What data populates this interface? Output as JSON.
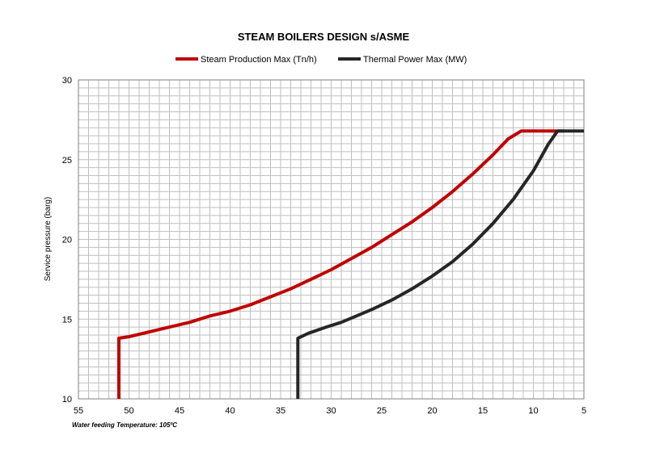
{
  "chart_data": {
    "type": "line",
    "title": "STEAM BOILERS DESIGN s/ASME",
    "xlabel": "",
    "ylabel": "Service pressure  (barg)",
    "footnote": "Water feeding Temperature: 105ºC",
    "xlim": [
      55,
      5
    ],
    "x_reversed": true,
    "ylim": [
      10,
      30
    ],
    "xticks": [
      55,
      50,
      45,
      40,
      35,
      30,
      25,
      20,
      15,
      10,
      5
    ],
    "yticks": [
      10,
      15,
      20,
      25,
      30
    ],
    "grid": true,
    "legend_position": "top-center",
    "series": [
      {
        "name": "Steam Production Max (Tn/h)",
        "color": "#c00000",
        "points": [
          [
            51,
            10
          ],
          [
            51,
            13.8
          ],
          [
            50,
            13.9
          ],
          [
            48,
            14.2
          ],
          [
            46,
            14.5
          ],
          [
            44,
            14.8
          ],
          [
            42,
            15.2
          ],
          [
            40,
            15.5
          ],
          [
            38,
            15.9
          ],
          [
            36,
            16.4
          ],
          [
            34,
            16.9
          ],
          [
            32,
            17.5
          ],
          [
            30,
            18.1
          ],
          [
            28,
            18.8
          ],
          [
            26,
            19.5
          ],
          [
            24,
            20.3
          ],
          [
            22,
            21.1
          ],
          [
            20,
            22.0
          ],
          [
            18,
            23.0
          ],
          [
            16,
            24.1
          ],
          [
            14,
            25.3
          ],
          [
            12.5,
            26.3
          ],
          [
            11.2,
            26.8
          ],
          [
            7,
            26.8
          ]
        ]
      },
      {
        "name": "Thermal Power Max (MW)",
        "color": "#262626",
        "points": [
          [
            33.3,
            10
          ],
          [
            33.3,
            13.8
          ],
          [
            32.3,
            14.1
          ],
          [
            30.5,
            14.5
          ],
          [
            29,
            14.8
          ],
          [
            27.5,
            15.2
          ],
          [
            26,
            15.6
          ],
          [
            24,
            16.2
          ],
          [
            22,
            16.9
          ],
          [
            20,
            17.7
          ],
          [
            18,
            18.6
          ],
          [
            16,
            19.7
          ],
          [
            14,
            21.0
          ],
          [
            12,
            22.5
          ],
          [
            10,
            24.3
          ],
          [
            8.5,
            26.0
          ],
          [
            7.6,
            26.8
          ],
          [
            5,
            26.8
          ]
        ]
      }
    ]
  }
}
